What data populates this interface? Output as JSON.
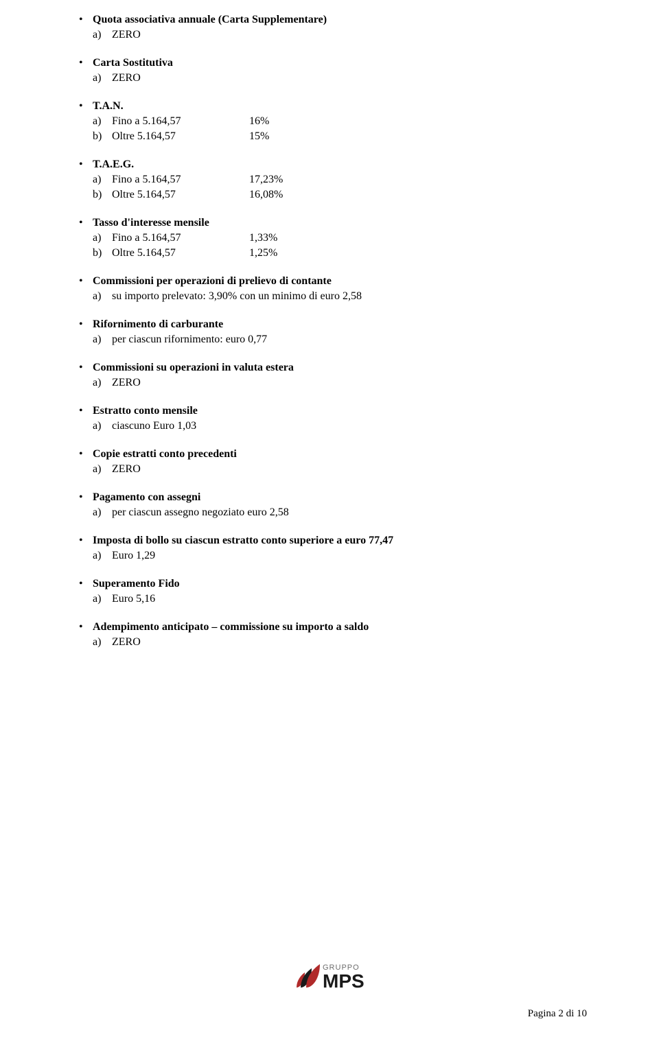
{
  "sections": [
    {
      "title": "Quota associativa annuale (Carta Supplementare)",
      "items": [
        {
          "letter": "a)",
          "label": "ZERO",
          "value": ""
        }
      ]
    },
    {
      "title": "Carta Sostitutiva",
      "items": [
        {
          "letter": "a)",
          "label": "ZERO",
          "value": ""
        }
      ]
    },
    {
      "title": "T.A.N.",
      "items": [
        {
          "letter": "a)",
          "label": "Fino a 5.164,57",
          "value": "16%"
        },
        {
          "letter": "b)",
          "label": "Oltre 5.164,57",
          "value": "15%"
        }
      ]
    },
    {
      "title": "T.A.E.G.",
      "items": [
        {
          "letter": "a)",
          "label": "Fino a 5.164,57",
          "value": "17,23%"
        },
        {
          "letter": "b)",
          "label": "Oltre 5.164,57",
          "value": "16,08%"
        }
      ]
    },
    {
      "title": "Tasso d'interesse mensile",
      "items": [
        {
          "letter": "a)",
          "label": "Fino a 5.164,57",
          "value": "1,33%"
        },
        {
          "letter": "b)",
          "label": "Oltre 5.164,57",
          "value": "1,25%"
        }
      ]
    },
    {
      "title": "Commissioni per operazioni di prelievo di contante",
      "items": [
        {
          "letter": "a)",
          "label": "su importo prelevato: 3,90% con un minimo di euro 2,58",
          "value": ""
        }
      ]
    },
    {
      "title": "Rifornimento di carburante",
      "items": [
        {
          "letter": "a)",
          "label": "per ciascun rifornimento: euro 0,77",
          "value": ""
        }
      ]
    },
    {
      "title": "Commissioni su operazioni in valuta estera",
      "items": [
        {
          "letter": "a)",
          "label": "ZERO",
          "value": ""
        }
      ]
    },
    {
      "title": "Estratto conto mensile",
      "items": [
        {
          "letter": "a)",
          "label": "ciascuno Euro 1,03",
          "value": ""
        }
      ]
    },
    {
      "title": "Copie estratti conto precedenti",
      "items": [
        {
          "letter": "a)",
          "label": "ZERO",
          "value": ""
        }
      ]
    },
    {
      "title": "Pagamento con assegni",
      "items": [
        {
          "letter": "a)",
          "label": "per ciascun assegno negoziato euro 2,58",
          "value": ""
        }
      ]
    },
    {
      "title": "Imposta di bollo su ciascun estratto conto superiore a euro 77,47",
      "items": [
        {
          "letter": "a)",
          "label": "Euro 1,29",
          "value": ""
        }
      ]
    },
    {
      "title": "Superamento Fido",
      "items": [
        {
          "letter": "a)",
          "label": "Euro 5,16",
          "value": ""
        }
      ]
    },
    {
      "title": "Adempimento anticipato – commissione su importo a saldo",
      "items": [
        {
          "letter": "a)",
          "label": "ZERO",
          "value": ""
        }
      ]
    }
  ],
  "logo": {
    "label_top": "GRUPPO",
    "label_main": "MPS",
    "colors": {
      "red": "#b02a2a",
      "dark": "#1a1a1a",
      "top_text": "#6d6d6d"
    }
  },
  "page_number": "Pagina 2 di 10"
}
